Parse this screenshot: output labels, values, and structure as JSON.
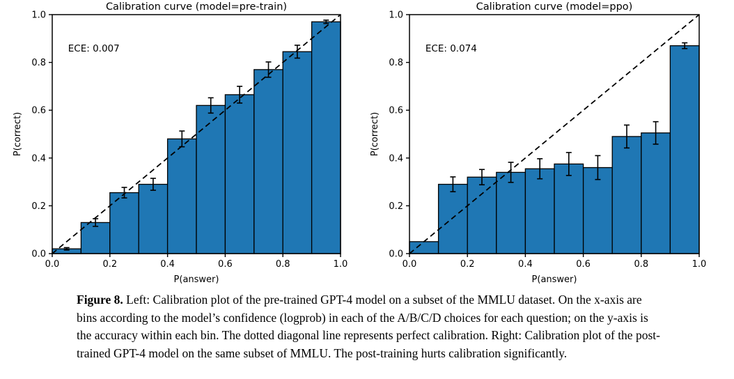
{
  "page": {
    "background_color": "#ffffff",
    "text_color": "#000000"
  },
  "caption": {
    "lead": "Figure 8.",
    "body": "Left: Calibration plot of the pre-trained GPT-4 model on a subset of the MMLU dataset. On the x-axis are bins according to the model’s confidence (logprob) in each of the A/B/C/D choices for each question; on the y-axis is the accuracy within each bin. The dotted diagonal line represents perfect calibration. Right: Calibration plot of the post-trained GPT-4 model on the same subset of MMLU. The post-training hurts calibration significantly."
  },
  "chart_data": [
    {
      "type": "bar",
      "title": "Calibration curve (model=pre-train)",
      "annotation": "ECE: 0.007",
      "xlabel": "P(answer)",
      "ylabel": "P(correct)",
      "xlim": [
        0.0,
        1.0
      ],
      "ylim": [
        0.0,
        1.0
      ],
      "xticks": [
        "0.0",
        "0.2",
        "0.4",
        "0.6",
        "0.8",
        "1.0"
      ],
      "yticks": [
        "0.0",
        "0.2",
        "0.4",
        "0.6",
        "0.8",
        "1.0"
      ],
      "bin_width": 0.1,
      "bin_centers": [
        0.05,
        0.15,
        0.25,
        0.35,
        0.45,
        0.55,
        0.65,
        0.75,
        0.85,
        0.95
      ],
      "values": [
        0.02,
        0.13,
        0.255,
        0.29,
        0.48,
        0.62,
        0.665,
        0.77,
        0.845,
        0.97
      ],
      "errors": [
        0.005,
        0.016,
        0.022,
        0.025,
        0.033,
        0.032,
        0.035,
        0.032,
        0.027,
        0.007
      ],
      "bar_color": "#1f77b4",
      "bar_edge_color": "#000000",
      "diagonal_line": {
        "style": "dashed",
        "from": [
          0.0,
          0.0
        ],
        "to": [
          1.0,
          1.0
        ],
        "color": "#000000",
        "meaning": "perfect calibration"
      },
      "grid": false,
      "legend": null
    },
    {
      "type": "bar",
      "title": "Calibration curve (model=ppo)",
      "annotation": "ECE: 0.074",
      "xlabel": "P(answer)",
      "ylabel": "P(correct)",
      "xlim": [
        0.0,
        1.0
      ],
      "ylim": [
        0.0,
        1.0
      ],
      "xticks": [
        "0.0",
        "0.2",
        "0.4",
        "0.6",
        "0.8",
        "1.0"
      ],
      "yticks": [
        "0.0",
        "0.2",
        "0.4",
        "0.6",
        "0.8",
        "1.0"
      ],
      "bin_width": 0.1,
      "bin_centers": [
        0.05,
        0.15,
        0.25,
        0.35,
        0.45,
        0.55,
        0.65,
        0.75,
        0.85,
        0.95
      ],
      "values": [
        0.05,
        0.29,
        0.32,
        0.34,
        0.355,
        0.375,
        0.36,
        0.49,
        0.505,
        0.87
      ],
      "errors": [
        0.0,
        0.031,
        0.032,
        0.042,
        0.042,
        0.048,
        0.05,
        0.048,
        0.047,
        0.012
      ],
      "bar_color": "#1f77b4",
      "bar_edge_color": "#000000",
      "diagonal_line": {
        "style": "dashed",
        "from": [
          0.0,
          0.0
        ],
        "to": [
          1.0,
          1.0
        ],
        "color": "#000000",
        "meaning": "perfect calibration"
      },
      "grid": false,
      "legend": null
    }
  ]
}
